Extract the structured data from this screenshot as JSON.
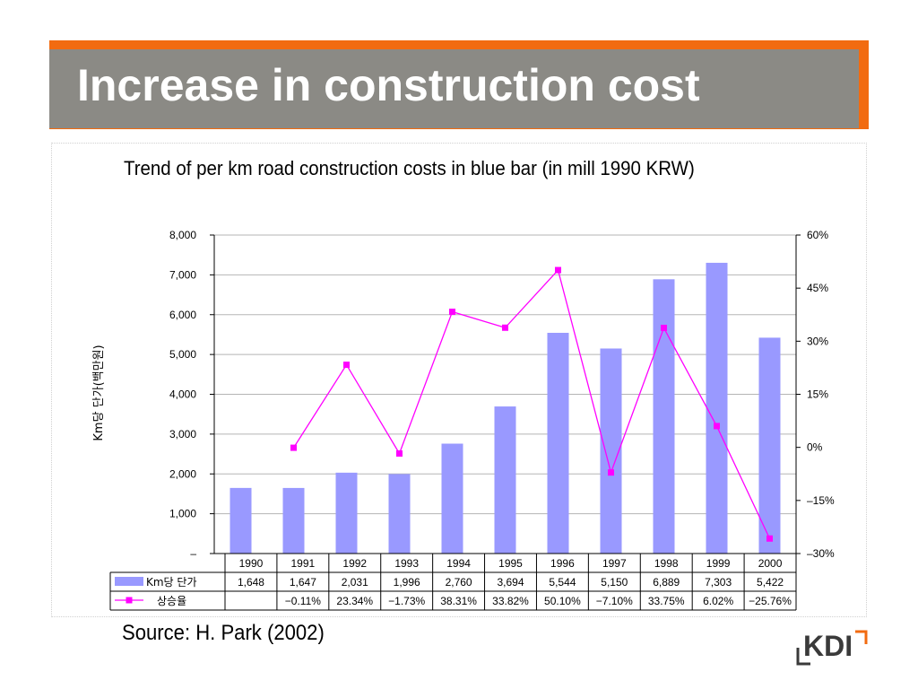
{
  "slide": {
    "title": "Increase in construction cost",
    "source": "Source: H. Park (2002)",
    "logo": "KDI"
  },
  "colors": {
    "title_bar": "#8b8a85",
    "accent": "#f26b10",
    "bar": "#9999ff",
    "line": "#ff00ff"
  },
  "chart_data": {
    "type": "bar",
    "title": "Trend of per km road construction costs in blue bar (in mill 1990 KRW)",
    "ylabel": "Km당 단가(백만원)",
    "ylim": [
      0,
      8000
    ],
    "y2lim": [
      -30,
      60
    ],
    "y_ticks": [
      "–",
      "1,000",
      "2,000",
      "3,000",
      "4,000",
      "5,000",
      "6,000",
      "7,000",
      "8,000"
    ],
    "y2_ticks": [
      "–30%",
      "–15%",
      "0%",
      "15%",
      "30%",
      "45%",
      "60%"
    ],
    "categories": [
      "1990",
      "1991",
      "1992",
      "1993",
      "1994",
      "1995",
      "1996",
      "1997",
      "1998",
      "1999",
      "2000"
    ],
    "grid": true,
    "series": [
      {
        "name": "Km당 단가",
        "type": "bar",
        "axis": "left",
        "values": [
          1648,
          1647,
          2031,
          1996,
          2760,
          3694,
          5544,
          5150,
          6889,
          7303,
          5422
        ],
        "labels": [
          "1,648",
          "1,647",
          "2,031",
          "1,996",
          "2,760",
          "3,694",
          "5,544",
          "5,150",
          "6,889",
          "7,303",
          "5,422"
        ]
      },
      {
        "name": "상승율",
        "type": "line",
        "axis": "right",
        "values": [
          null,
          -0.11,
          23.34,
          -1.73,
          38.31,
          33.82,
          50.1,
          -7.1,
          33.75,
          6.02,
          -25.76
        ],
        "labels": [
          "",
          "−0.11%",
          "23.34%",
          "−1.73%",
          "38.31%",
          "33.82%",
          "50.10%",
          "−7.10%",
          "33.75%",
          "6.02%",
          "−25.76%"
        ]
      }
    ]
  }
}
